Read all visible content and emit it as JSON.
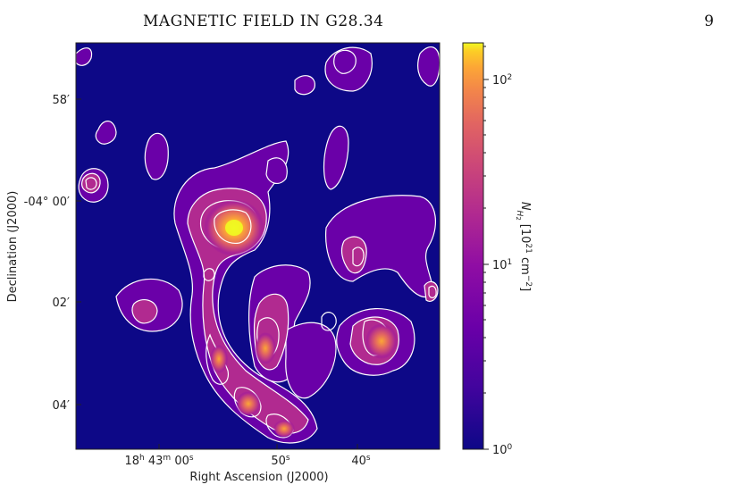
{
  "header": {
    "title": "MAGNETIC FIELD IN G28.34",
    "page_number": "9"
  },
  "figure": {
    "image_alt": "Column density map of G28.34 with white contours",
    "x_axis": {
      "label": "Right Ascension (J2000)",
      "ticks": [
        {
          "h": "18",
          "m": "43",
          "s": "00",
          "text": "18h 43m 00s"
        },
        {
          "s": "50",
          "text": "50s"
        },
        {
          "s": "40",
          "text": "40s"
        }
      ]
    },
    "y_axis": {
      "label": "Declination (J2000)",
      "ticks": [
        "58′",
        "-04° 00′",
        "02′",
        "04′"
      ]
    },
    "colorbar": {
      "label_symbol": "N",
      "label_sub": "H",
      "label_subsub": "2",
      "label_units": "[10",
      "label_units_exp": "21",
      "label_units_tail": " cm",
      "label_units_tail_exp": "−2",
      "label_close": "]",
      "ticks": [
        {
          "base": "10",
          "exp": "0"
        },
        {
          "base": "10",
          "exp": "1"
        },
        {
          "base": "10",
          "exp": "2"
        }
      ],
      "scale": "log",
      "range": [
        1,
        160
      ],
      "colormap": "plasma"
    },
    "colors": {
      "background": "#0d0887",
      "contour": "#ffffff"
    }
  }
}
